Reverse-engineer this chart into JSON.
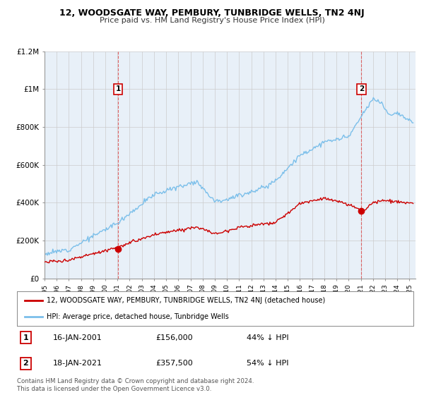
{
  "title": "12, WOODSGATE WAY, PEMBURY, TUNBRIDGE WELLS, TN2 4NJ",
  "subtitle": "Price paid vs. HM Land Registry's House Price Index (HPI)",
  "ylim": [
    0,
    1200000
  ],
  "yticks": [
    0,
    200000,
    400000,
    600000,
    800000,
    1000000,
    1200000
  ],
  "ytick_labels": [
    "£0",
    "£200K",
    "£400K",
    "£600K",
    "£800K",
    "£1M",
    "£1.2M"
  ],
  "xmin_year": 1995.0,
  "xmax_year": 2025.5,
  "xtick_years": [
    1995,
    1996,
    1997,
    1998,
    1999,
    2000,
    2001,
    2002,
    2003,
    2004,
    2005,
    2006,
    2007,
    2008,
    2009,
    2010,
    2011,
    2012,
    2013,
    2014,
    2015,
    2016,
    2017,
    2018,
    2019,
    2020,
    2021,
    2022,
    2023,
    2024,
    2025
  ],
  "hpi_color": "#7bbfea",
  "sold_color": "#cc0000",
  "annotation_color": "#cc0000",
  "vline_color": "#dd4444",
  "grid_color": "#cccccc",
  "chart_bg": "#e8f0f8",
  "background_color": "#ffffff",
  "legend_label_sold": "12, WOODSGATE WAY, PEMBURY, TUNBRIDGE WELLS, TN2 4NJ (detached house)",
  "legend_label_hpi": "HPI: Average price, detached house, Tunbridge Wells",
  "note1_num": "1",
  "note1_date": "16-JAN-2001",
  "note1_price": "£156,000",
  "note1_hpi": "44% ↓ HPI",
  "note2_num": "2",
  "note2_date": "18-JAN-2021",
  "note2_price": "£357,500",
  "note2_hpi": "54% ↓ HPI",
  "footer": "Contains HM Land Registry data © Crown copyright and database right 2024.\nThis data is licensed under the Open Government Licence v3.0.",
  "sale1_year": 2001.05,
  "sale1_price": 156000,
  "sale2_year": 2021.05,
  "sale2_price": 357500,
  "annot1_price": 1000000,
  "annot2_price": 1000000
}
